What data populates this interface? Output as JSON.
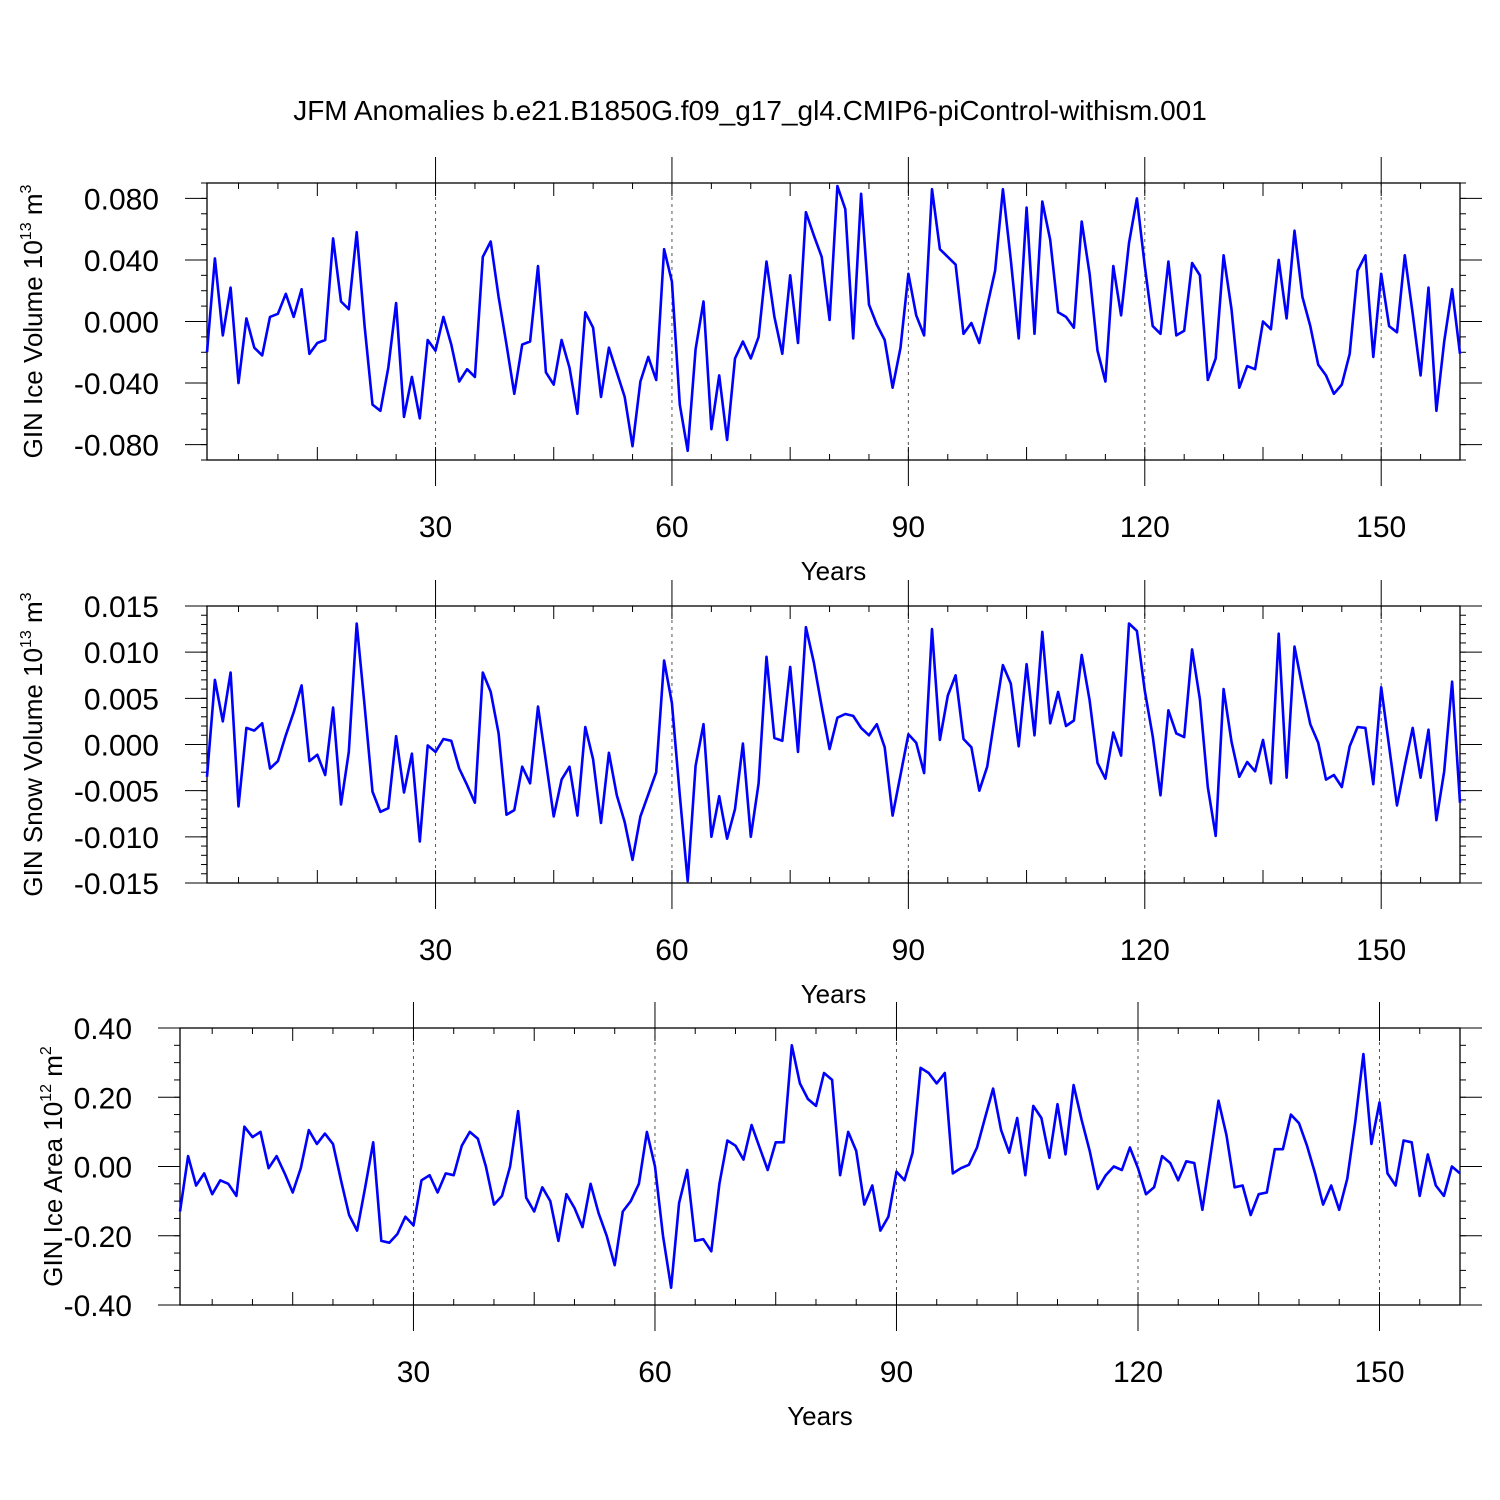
{
  "title": "JFM Anomalies b.e21.B1850G.f09_g17_gl4.CMIP6-piControl-withism.001",
  "line_color": "#0000ff",
  "chart_data": [
    {
      "type": "line",
      "name": "ice-volume",
      "ylabel_base": "GIN Ice Volume 10",
      "ylabel_exp": "13",
      "ylabel_unit": " m",
      "ylabel_unit_exp": "3",
      "xlabel": "Years",
      "xlim": [
        1,
        160
      ],
      "ylim": [
        -0.09,
        0.09
      ],
      "x_ticks": [
        30,
        60,
        90,
        120,
        150
      ],
      "x_tick_labels": [
        "30",
        "60",
        "90",
        "120",
        "150"
      ],
      "y_ticks": [
        0.08,
        0.04,
        0.0,
        -0.04,
        -0.08
      ],
      "y_tick_labels": [
        "0.080",
        "0.040",
        "0.000",
        "-0.040",
        "-0.080"
      ],
      "y_minor_step": 0.01,
      "values": [
        -0.02,
        0.041,
        -0.009,
        0.022,
        -0.04,
        0.002,
        -0.017,
        -0.022,
        0.003,
        0.005,
        0.018,
        0.003,
        0.021,
        -0.021,
        -0.014,
        -0.012,
        0.054,
        0.013,
        0.008,
        0.058,
        -0.003,
        -0.054,
        -0.058,
        -0.03,
        0.012,
        -0.062,
        -0.036,
        -0.063,
        -0.012,
        -0.019,
        0.003,
        -0.015,
        -0.039,
        -0.031,
        -0.036,
        0.042,
        0.052,
        0.016,
        -0.015,
        -0.047,
        -0.015,
        -0.013,
        0.036,
        -0.033,
        -0.041,
        -0.012,
        -0.03,
        -0.06,
        0.006,
        -0.004,
        -0.049,
        -0.017,
        -0.033,
        -0.049,
        -0.081,
        -0.039,
        -0.023,
        -0.038,
        0.047,
        0.026,
        -0.054,
        -0.084,
        -0.018,
        0.013,
        -0.07,
        -0.035,
        -0.077,
        -0.024,
        -0.013,
        -0.024,
        -0.01,
        0.039,
        0.003,
        -0.021,
        0.03,
        -0.014,
        0.071,
        0.056,
        0.042,
        0.001,
        0.088,
        0.073,
        -0.011,
        0.083,
        0.011,
        -0.002,
        -0.012,
        -0.043,
        -0.017,
        0.031,
        0.004,
        -0.009,
        0.086,
        0.047,
        0.042,
        0.037,
        -0.008,
        -0.001,
        -0.014,
        0.01,
        0.033,
        0.086,
        0.04,
        -0.011,
        0.074,
        -0.008,
        0.078,
        0.053,
        0.006,
        0.003,
        -0.004,
        0.065,
        0.031,
        -0.019,
        -0.039,
        0.036,
        0.004,
        0.051,
        0.08,
        0.036,
        -0.003,
        -0.008,
        0.039,
        -0.009,
        -0.006,
        0.038,
        0.03,
        -0.038,
        -0.024,
        0.043,
        0.008,
        -0.043,
        -0.029,
        -0.031,
        0.0,
        -0.005,
        0.04,
        0.002,
        0.059,
        0.016,
        -0.003,
        -0.028,
        -0.035,
        -0.047,
        -0.041,
        -0.021,
        0.033,
        0.043,
        -0.023,
        0.031,
        -0.003,
        -0.007,
        0.043,
        0.005,
        -0.035,
        0.022,
        -0.058,
        -0.013,
        0.021,
        -0.021
      ]
    },
    {
      "type": "line",
      "name": "snow-volume",
      "ylabel_base": "GIN Snow Volume 10",
      "ylabel_exp": "13",
      "ylabel_unit": " m",
      "ylabel_unit_exp": "3",
      "xlabel": "Years",
      "xlim": [
        1,
        160
      ],
      "ylim": [
        -0.015,
        0.015
      ],
      "x_ticks": [
        30,
        60,
        90,
        120,
        150
      ],
      "x_tick_labels": [
        "30",
        "60",
        "90",
        "120",
        "150"
      ],
      "y_ticks": [
        0.015,
        0.01,
        0.005,
        0.0,
        -0.005,
        -0.01,
        -0.015
      ],
      "y_tick_labels": [
        "0.015",
        "0.010",
        "0.005",
        "0.000",
        "-0.005",
        "-0.010",
        "-0.015"
      ],
      "y_minor_step": 0.001,
      "values": [
        -0.0035,
        0.007,
        0.0025,
        0.0078,
        -0.0067,
        0.0018,
        0.0015,
        0.0023,
        -0.0026,
        -0.0018,
        0.001,
        0.0035,
        0.0064,
        -0.0018,
        -0.0011,
        -0.0033,
        0.004,
        -0.0065,
        -0.0008,
        0.0131,
        0.0042,
        -0.0051,
        -0.0073,
        -0.0069,
        0.0009,
        -0.0052,
        -0.001,
        -0.0105,
        -0.0001,
        -0.0008,
        0.0006,
        0.0004,
        -0.0026,
        -0.0044,
        -0.0063,
        0.0078,
        0.0057,
        0.0012,
        -0.0076,
        -0.0071,
        -0.0024,
        -0.0042,
        0.0041,
        -0.0018,
        -0.0078,
        -0.0038,
        -0.0024,
        -0.0077,
        0.0019,
        -0.0016,
        -0.0085,
        -0.0009,
        -0.0055,
        -0.0084,
        -0.0125,
        -0.0078,
        -0.0054,
        -0.003,
        0.0091,
        0.0045,
        -0.0055,
        -0.0148,
        -0.0023,
        0.0022,
        -0.01,
        -0.0056,
        -0.0102,
        -0.007,
        0.0001,
        -0.01,
        -0.0042,
        0.0095,
        0.0007,
        0.0004,
        0.0084,
        -0.0008,
        0.0127,
        0.0089,
        0.0041,
        -0.0005,
        0.0029,
        0.0033,
        0.0031,
        0.0018,
        0.001,
        0.0022,
        -0.0003,
        -0.0077,
        -0.0033,
        0.0011,
        0.0002,
        -0.0031,
        0.0125,
        0.0005,
        0.0053,
        0.0075,
        0.0006,
        -0.0003,
        -0.005,
        -0.0024,
        0.0032,
        0.0086,
        0.0066,
        -0.0002,
        0.0087,
        0.001,
        0.0122,
        0.0023,
        0.0057,
        0.002,
        0.0026,
        0.0097,
        0.0048,
        -0.002,
        -0.0037,
        0.0013,
        -0.0012,
        0.0131,
        0.0123,
        0.0058,
        0.0009,
        -0.0055,
        0.0037,
        0.0012,
        0.0008,
        0.0103,
        0.0049,
        -0.0046,
        -0.0099,
        0.006,
        0.0003,
        -0.0035,
        -0.0019,
        -0.0029,
        0.0005,
        -0.0042,
        0.012,
        -0.0036,
        0.0106,
        0.0062,
        0.0022,
        0.0002,
        -0.0038,
        -0.0033,
        -0.0046,
        -0.0002,
        0.0019,
        0.0018,
        -0.0043,
        0.0062,
        -0.0002,
        -0.0066,
        -0.0023,
        0.0018,
        -0.0036,
        0.0016,
        -0.0082,
        -0.0029,
        0.0068,
        -0.0063
      ]
    },
    {
      "type": "line",
      "name": "ice-area",
      "ylabel_base": "GIN Ice Area 10",
      "ylabel_exp": "12",
      "ylabel_unit": " m",
      "ylabel_unit_exp": "2",
      "xlabel": "Years",
      "xlim": [
        1,
        160
      ],
      "ylim": [
        -0.4,
        0.4
      ],
      "x_ticks": [
        30,
        60,
        90,
        120,
        150
      ],
      "x_tick_labels": [
        "30",
        "60",
        "90",
        "120",
        "150"
      ],
      "y_ticks": [
        0.4,
        0.2,
        0.0,
        -0.2,
        -0.4
      ],
      "y_tick_labels": [
        "0.40",
        "0.20",
        "0.00",
        "-0.20",
        "-0.40"
      ],
      "y_minor_step": 0.05,
      "values": [
        -0.13,
        0.03,
        -0.055,
        -0.02,
        -0.08,
        -0.04,
        -0.05,
        -0.085,
        0.115,
        0.085,
        0.1,
        -0.005,
        0.03,
        -0.02,
        -0.075,
        -0.005,
        0.105,
        0.065,
        0.095,
        0.065,
        -0.04,
        -0.14,
        -0.185,
        -0.06,
        0.07,
        -0.215,
        -0.22,
        -0.195,
        -0.145,
        -0.17,
        -0.04,
        -0.025,
        -0.075,
        -0.02,
        -0.025,
        0.06,
        0.1,
        0.08,
        0.0,
        -0.11,
        -0.085,
        0.0,
        0.16,
        -0.09,
        -0.13,
        -0.06,
        -0.1,
        -0.215,
        -0.08,
        -0.12,
        -0.175,
        -0.05,
        -0.135,
        -0.2,
        -0.285,
        -0.13,
        -0.1,
        -0.05,
        0.1,
        0.0,
        -0.2,
        -0.35,
        -0.105,
        -0.01,
        -0.215,
        -0.21,
        -0.245,
        -0.05,
        0.075,
        0.06,
        0.02,
        0.12,
        0.055,
        -0.01,
        0.07,
        0.07,
        0.35,
        0.24,
        0.195,
        0.175,
        0.27,
        0.25,
        -0.025,
        0.1,
        0.045,
        -0.11,
        -0.055,
        -0.185,
        -0.145,
        -0.015,
        -0.04,
        0.04,
        0.285,
        0.27,
        0.24,
        0.27,
        -0.02,
        -0.005,
        0.005,
        0.055,
        0.14,
        0.225,
        0.105,
        0.04,
        0.14,
        -0.025,
        0.175,
        0.14,
        0.025,
        0.18,
        0.035,
        0.235,
        0.135,
        0.045,
        -0.065,
        -0.025,
        0.0,
        -0.01,
        0.055,
        -0.005,
        -0.08,
        -0.06,
        0.03,
        0.01,
        -0.04,
        0.015,
        0.01,
        -0.125,
        0.03,
        0.19,
        0.09,
        -0.06,
        -0.055,
        -0.14,
        -0.08,
        -0.075,
        0.05,
        0.05,
        0.15,
        0.125,
        0.06,
        -0.02,
        -0.11,
        -0.055,
        -0.125,
        -0.035,
        0.13,
        0.325,
        0.065,
        0.185,
        -0.02,
        -0.055,
        0.075,
        0.07,
        -0.085,
        0.035,
        -0.055,
        -0.085,
        0.0,
        -0.02
      ]
    }
  ]
}
